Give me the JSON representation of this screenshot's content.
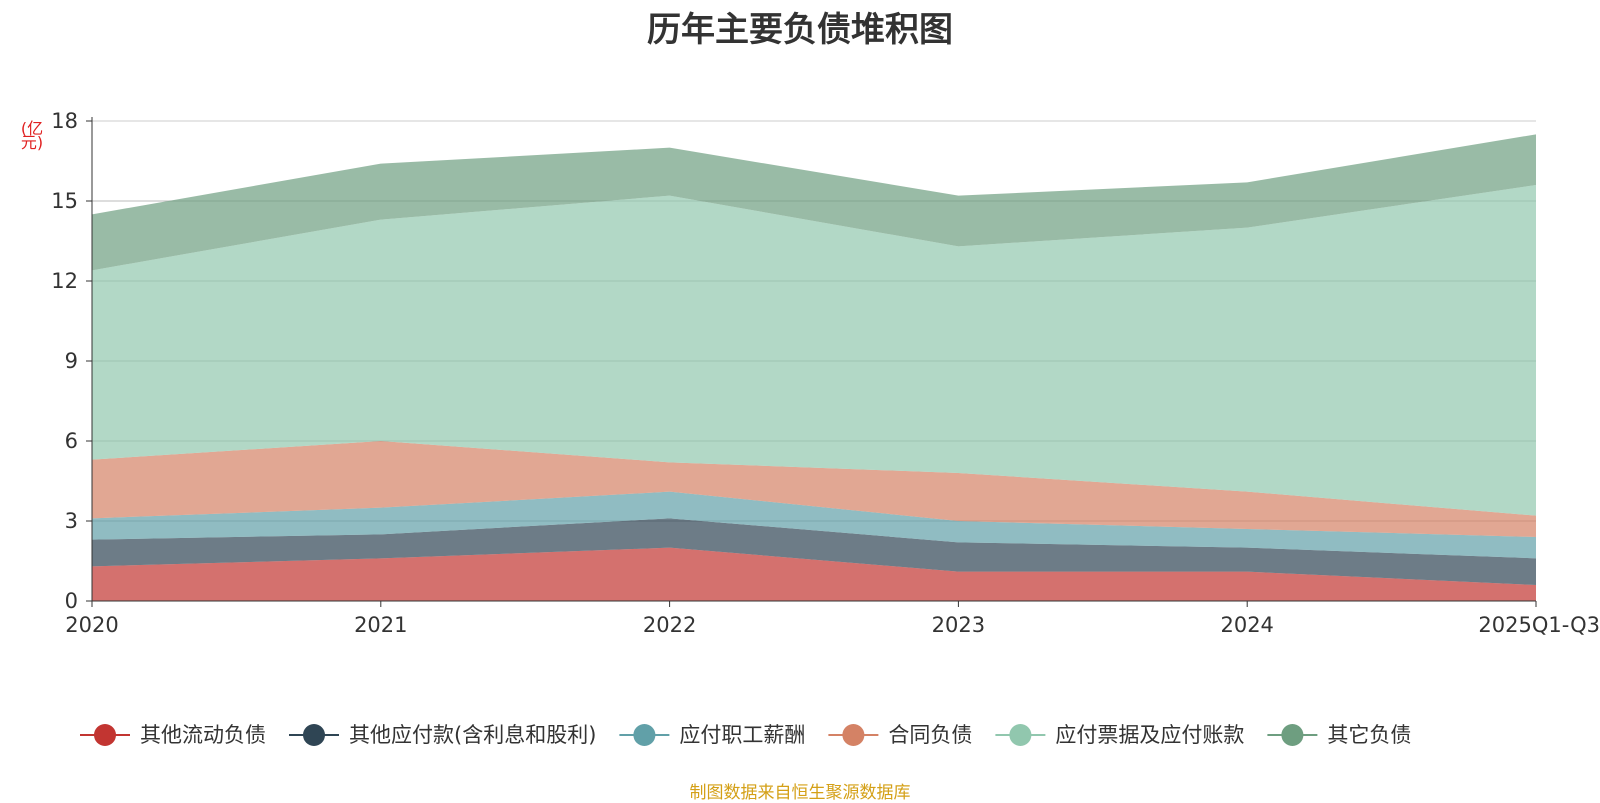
{
  "title": "历年主要负债堆积图",
  "unit": "(亿元)",
  "source": "制图数据来自恒生聚源数据库",
  "chart_data": {
    "type": "area",
    "stacked": true,
    "title": "历年主要负债堆积图",
    "ylabel": "(亿元)",
    "xlabel": "",
    "ylim": [
      0,
      18
    ],
    "yticks": [
      0,
      3,
      6,
      9,
      12,
      15,
      18
    ],
    "grid": true,
    "legend_position": "bottom",
    "categories": [
      "2020",
      "2021",
      "2022",
      "2023",
      "2024",
      "2025Q1-Q3"
    ],
    "series": [
      {
        "name": "其他流动负债",
        "color": "#c23531",
        "values": [
          1.3,
          1.6,
          2.0,
          1.1,
          1.1,
          0.6
        ]
      },
      {
        "name": "其他应付款(含利息和股利)",
        "color": "#2f4554",
        "values": [
          1.0,
          0.9,
          1.1,
          1.1,
          0.9,
          1.0
        ]
      },
      {
        "name": "应付职工薪酬",
        "color": "#61a0a8",
        "values": [
          0.8,
          1.0,
          1.0,
          0.8,
          0.7,
          0.8
        ]
      },
      {
        "name": "合同负债",
        "color": "#d48265",
        "values": [
          2.2,
          2.5,
          1.1,
          1.8,
          1.4,
          0.8
        ]
      },
      {
        "name": "应付票据及应付账款",
        "color": "#91c7ae",
        "values": [
          7.1,
          8.3,
          10.0,
          8.5,
          9.9,
          12.4
        ]
      },
      {
        "name": "其它负债",
        "color": "#6e9e80",
        "values": [
          2.1,
          2.1,
          1.8,
          1.9,
          1.7,
          1.9
        ]
      }
    ]
  }
}
